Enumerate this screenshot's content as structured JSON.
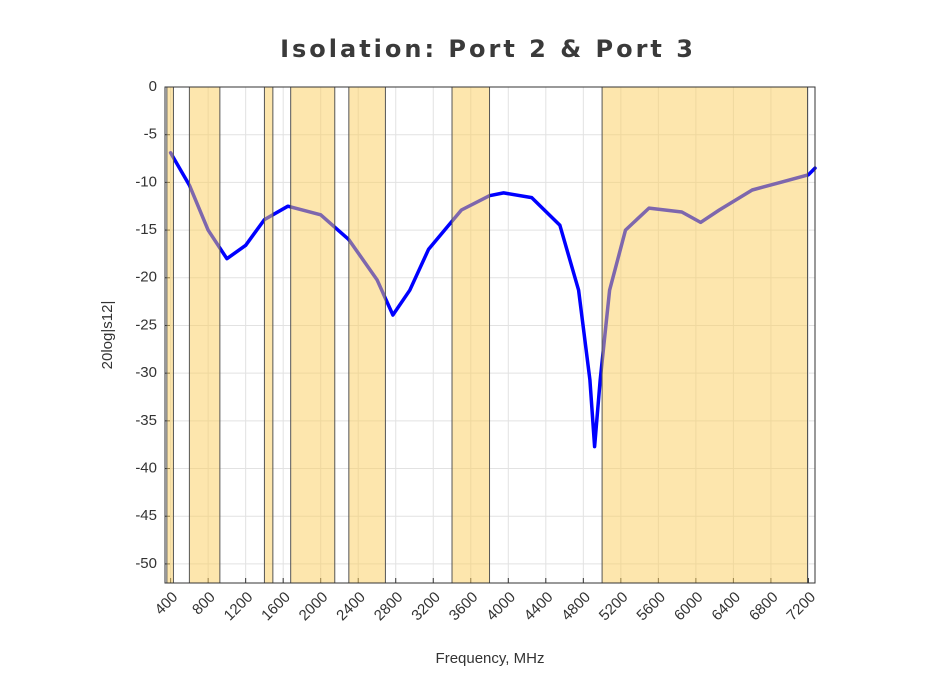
{
  "chart_data": {
    "type": "line",
    "title": "Isolation: Port 2 & Port 3",
    "x_label": "Frequency, MHz",
    "y_label": "20log|s12|",
    "x": [
      400,
      600,
      800,
      1000,
      1200,
      1400,
      1650,
      2000,
      2300,
      2600,
      2770,
      2950,
      3150,
      3500,
      3800,
      3950,
      4250,
      4550,
      4750,
      4870,
      4920,
      4980,
      5080,
      5250,
      5500,
      5850,
      6050,
      6250,
      6600,
      6900,
      7200,
      7270
    ],
    "values": [
      -6.9,
      -10.3,
      -15,
      -18,
      -16.6,
      -13.9,
      -12.5,
      -13.4,
      -16,
      -20.2,
      -23.9,
      -21.3,
      -17,
      -12.9,
      -11.4,
      -11.1,
      -11.6,
      -14.5,
      -21.3,
      -30.7,
      -37.7,
      -30.7,
      -21.3,
      -15,
      -12.7,
      -13.1,
      -14.2,
      -12.9,
      -10.8,
      -10,
      -9.2,
      -8.5
    ],
    "color": "#0000ff",
    "bands": [
      [
        360,
        430
      ],
      [
        600,
        925
      ],
      [
        1400,
        1490
      ],
      [
        1680,
        2150
      ],
      [
        2300,
        2690
      ],
      [
        3400,
        3800
      ],
      [
        5000,
        7190
      ]
    ],
    "band_color": "#fbcd5b",
    "xlim": [
      340,
      7270
    ],
    "xticks": [
      400,
      800,
      1200,
      1600,
      2000,
      2400,
      2800,
      3200,
      3600,
      4000,
      4400,
      4800,
      5200,
      5600,
      6000,
      6400,
      6800,
      7200
    ],
    "ylim": [
      -52,
      0
    ],
    "yticks": [
      0,
      -5,
      -10,
      -15,
      -20,
      -25,
      -30,
      -35,
      -40,
      -45,
      -50
    ],
    "grid": true
  }
}
